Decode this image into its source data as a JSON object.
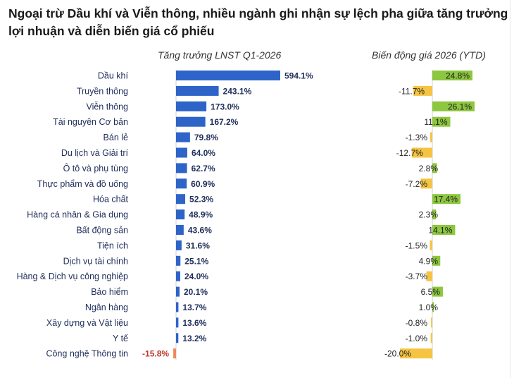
{
  "title": "Ngoại trừ Dầu khí và Viễn thông, nhiều ngành ghi nhận sự lệch pha giữa tăng trưởng lợi nhuận và diễn biến giá cổ phiếu",
  "colors": {
    "profit_pos": "#2E64C8",
    "profit_neg": "#F08A5D",
    "price_pos": "#8DC63F",
    "price_neg": "#F5C443",
    "label_text": "#1F2D5A",
    "neg_label": "#C0392B"
  },
  "chart_data": [
    {
      "type": "bar",
      "orientation": "horizontal",
      "title": "Tăng trưởng LNST Q1-2026",
      "unit": "%",
      "categories": [
        "Dầu khí",
        "Truyền thông",
        "Viễn thông",
        "Tài nguyên Cơ bản",
        "Bán lẻ",
        "Du lịch và Giải trí",
        "Ô tô và phụ tùng",
        "Thực phẩm và đồ uống",
        "Hóa chất",
        "Hàng cá nhân & Gia dụng",
        "Bất động sản",
        "Tiện ích",
        "Dịch vụ tài chính",
        "Hàng & Dịch vụ công nghiệp",
        "Bảo hiểm",
        "Ngân hàng",
        "Xây dựng và Vật liệu",
        "Y tế",
        "Công nghệ Thông tin"
      ],
      "values": [
        594.1,
        243.1,
        173.0,
        167.2,
        79.8,
        64.0,
        62.7,
        60.9,
        52.3,
        48.9,
        43.6,
        31.6,
        25.1,
        24.0,
        20.1,
        13.7,
        13.6,
        13.2,
        -15.8
      ],
      "labels": [
        "594.1%",
        "243.1%",
        "173.0%",
        "167.2%",
        "79.8%",
        "64.0%",
        "62.7%",
        "60.9%",
        "52.3%",
        "48.9%",
        "43.6%",
        "31.6%",
        "25.1%",
        "24.0%",
        "20.1%",
        "13.7%",
        "13.6%",
        "13.2%",
        "-15.8%"
      ]
    },
    {
      "type": "bar",
      "orientation": "horizontal",
      "title": "Biến động giá 2026 (YTD)",
      "unit": "%",
      "categories": [
        "Dầu khí",
        "Truyền thông",
        "Viễn thông",
        "Tài nguyên Cơ bản",
        "Bán lẻ",
        "Du lịch và Giải trí",
        "Ô tô và phụ tùng",
        "Thực phẩm và đồ uống",
        "Hóa chất",
        "Hàng cá nhân & Gia dụng",
        "Bất động sản",
        "Tiện ích",
        "Dịch vụ tài chính",
        "Hàng & Dịch vụ công nghiệp",
        "Bảo hiểm",
        "Ngân hàng",
        "Xây dựng và Vật liệu",
        "Y tế",
        "Công nghệ Thông tin"
      ],
      "values": [
        24.8,
        -11.7,
        26.1,
        11.1,
        -1.3,
        -12.7,
        2.8,
        -7.2,
        17.4,
        2.3,
        14.1,
        -1.5,
        4.9,
        -3.7,
        6.5,
        1.0,
        -0.8,
        -1.0,
        -20.0
      ],
      "labels": [
        "24.8%",
        "-11.7%",
        "26.1%",
        "11.1%",
        "-1.3%",
        "-12.7%",
        "2.8%",
        "-7.2%",
        "17.4%",
        "2.3%",
        "14.1%",
        "-1.5%",
        "4.9%",
        "-3.7%",
        "6.5%",
        "1.0%",
        "-0.8%",
        "-1.0%",
        "-20.0%"
      ]
    }
  ]
}
